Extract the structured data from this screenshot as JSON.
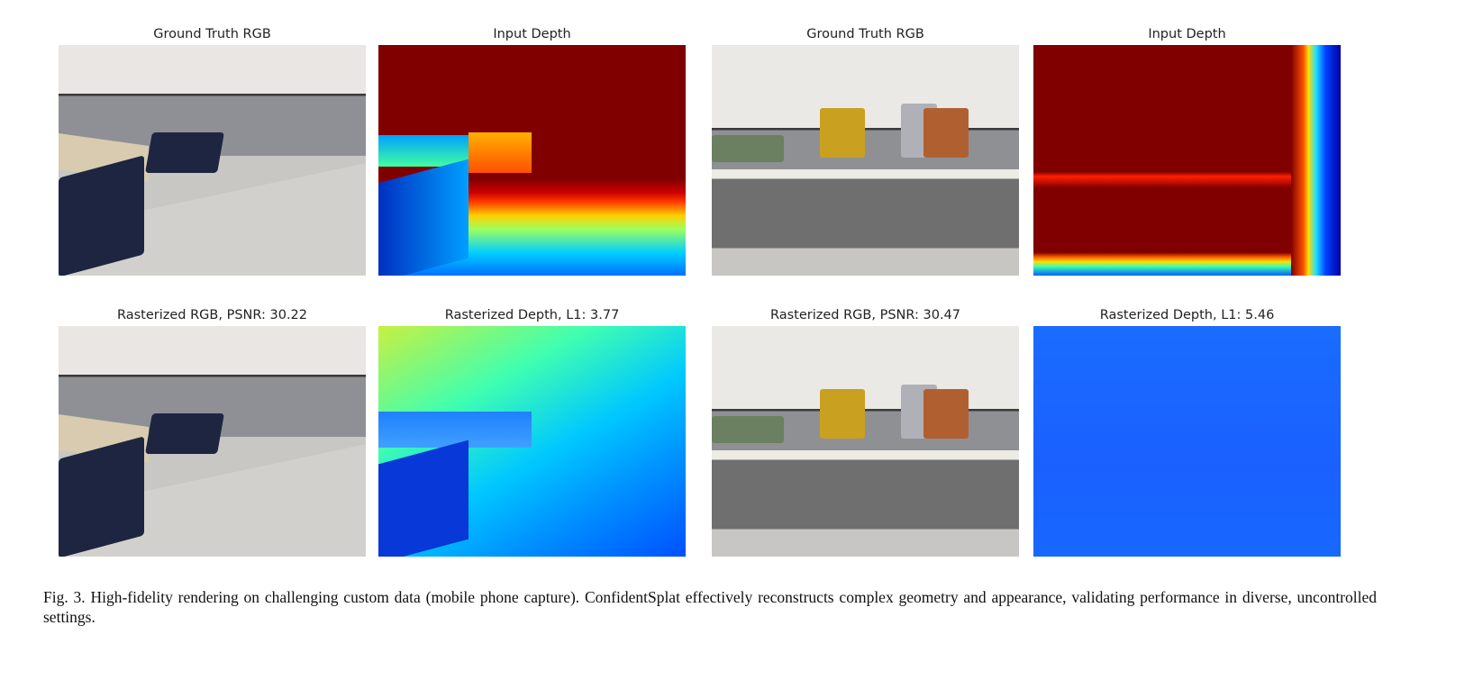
{
  "figure": {
    "left_group": {
      "top_rgb_title": "Ground Truth RGB",
      "top_depth_title": "Input Depth",
      "bottom_rgb_title": "Rasterized RGB, PSNR: 30.22",
      "bottom_depth_title": "Rasterized Depth, L1: 3.77"
    },
    "right_group": {
      "top_rgb_title": "Ground Truth RGB",
      "top_depth_title": "Input Depth",
      "bottom_rgb_title": "Rasterized RGB, PSNR: 30.47",
      "bottom_depth_title": "Rasterized Depth, L1: 5.46"
    },
    "colormap": "jet"
  },
  "caption": "Fig. 3.  High-fidelity rendering on challenging custom data (mobile phone capture). ConfidentSplat effectively reconstructs complex geometry and appearance, validating performance in diverse, uncontrolled settings."
}
